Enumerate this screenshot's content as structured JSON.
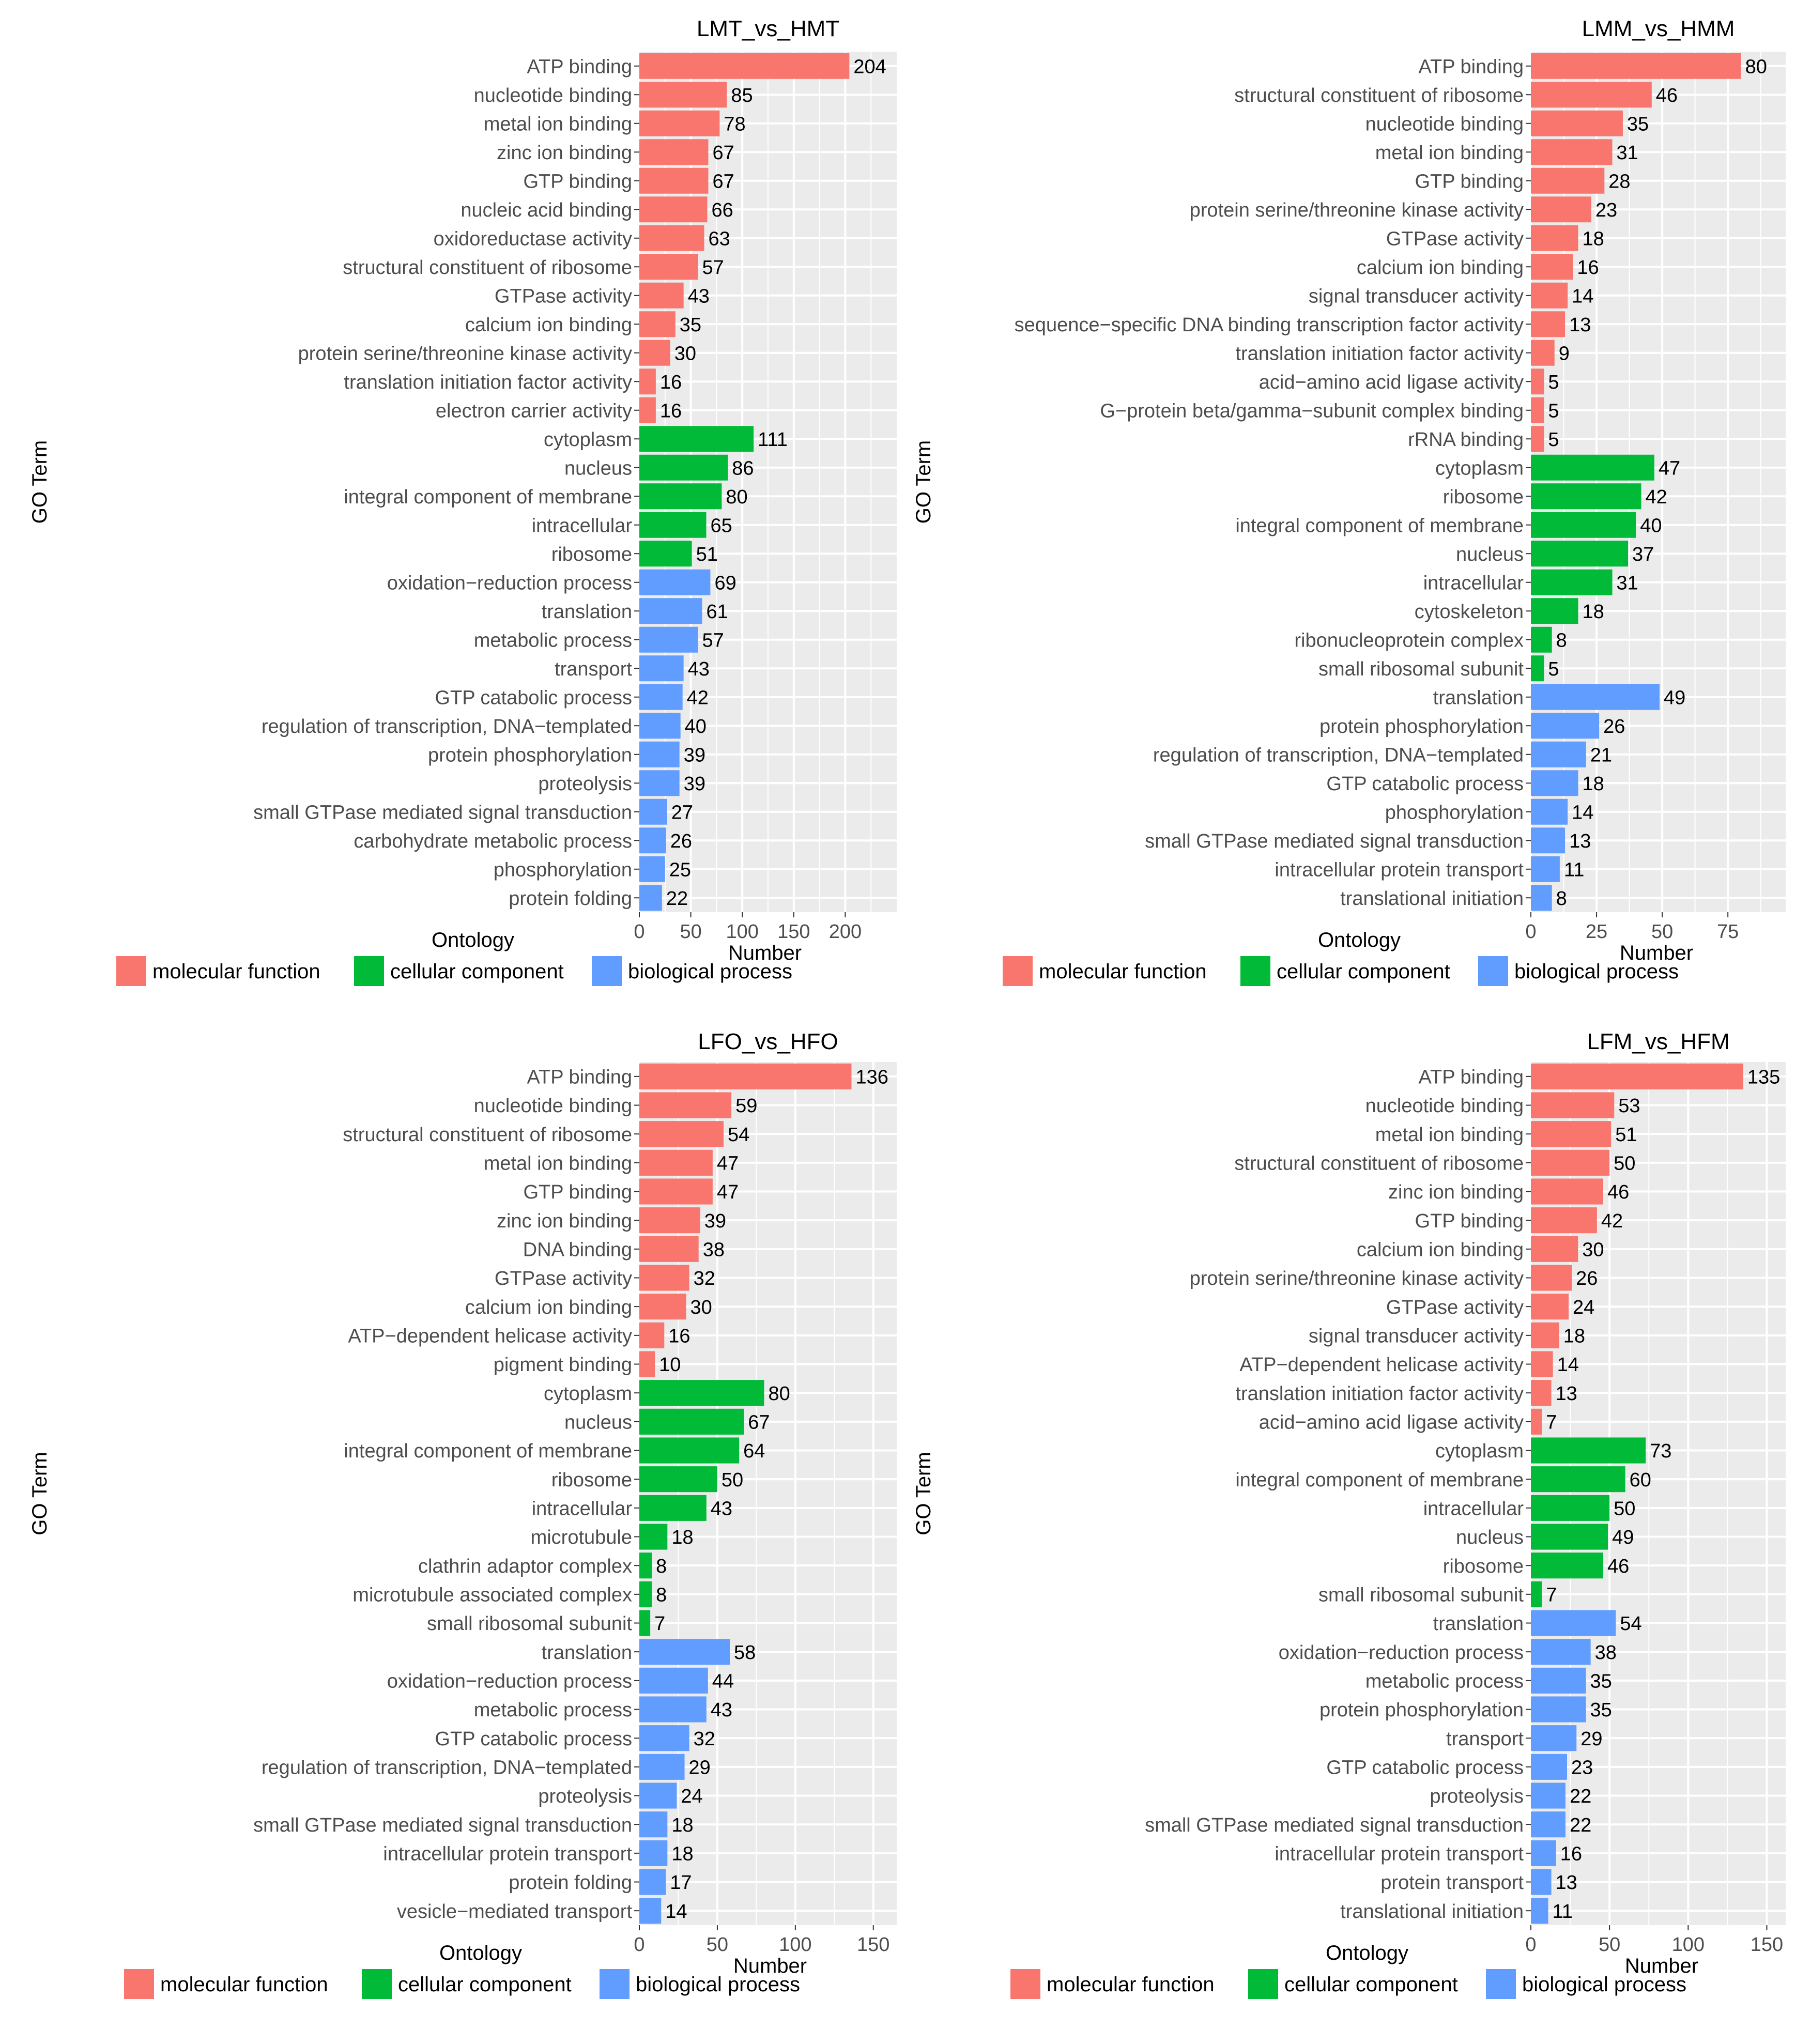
{
  "colors": {
    "molecular_function": "#F8766D",
    "cellular_component": "#00BA38",
    "biological_process": "#619CFF",
    "panel_bg": "#EBEBEB",
    "grid": "#FFFFFF",
    "text": "#4D4D4D"
  },
  "legend": {
    "title": "Ontology",
    "items": [
      {
        "key": "MF",
        "label": "molecular function"
      },
      {
        "key": "CC",
        "label": "cellular component"
      },
      {
        "key": "BP",
        "label": "biological process"
      }
    ]
  },
  "chart_data": [
    {
      "type": "bar",
      "orientation": "horizontal",
      "title": "LMT_vs_HMT",
      "xlabel": "Number",
      "ylabel": "GO Term",
      "xlim": [
        0,
        250
      ],
      "xticks": [
        0,
        50,
        100,
        150,
        200
      ],
      "grid": true,
      "legend_position": "bottom",
      "categories": [
        {
          "term": "ATP binding",
          "value": 204,
          "ontology": "MF"
        },
        {
          "term": "nucleotide binding",
          "value": 85,
          "ontology": "MF"
        },
        {
          "term": "metal ion binding",
          "value": 78,
          "ontology": "MF"
        },
        {
          "term": "zinc ion binding",
          "value": 67,
          "ontology": "MF"
        },
        {
          "term": "GTP binding",
          "value": 67,
          "ontology": "MF"
        },
        {
          "term": "nucleic acid binding",
          "value": 66,
          "ontology": "MF"
        },
        {
          "term": "oxidoreductase activity",
          "value": 63,
          "ontology": "MF"
        },
        {
          "term": "structural constituent of ribosome",
          "value": 57,
          "ontology": "MF"
        },
        {
          "term": "GTPase activity",
          "value": 43,
          "ontology": "MF"
        },
        {
          "term": "calcium ion binding",
          "value": 35,
          "ontology": "MF"
        },
        {
          "term": "protein serine/threonine kinase activity",
          "value": 30,
          "ontology": "MF"
        },
        {
          "term": "translation initiation factor activity",
          "value": 16,
          "ontology": "MF"
        },
        {
          "term": "electron carrier activity",
          "value": 16,
          "ontology": "MF"
        },
        {
          "term": "cytoplasm",
          "value": 111,
          "ontology": "CC"
        },
        {
          "term": "nucleus",
          "value": 86,
          "ontology": "CC"
        },
        {
          "term": "integral component of membrane",
          "value": 80,
          "ontology": "CC"
        },
        {
          "term": "intracellular",
          "value": 65,
          "ontology": "CC"
        },
        {
          "term": "ribosome",
          "value": 51,
          "ontology": "CC"
        },
        {
          "term": "oxidation−reduction process",
          "value": 69,
          "ontology": "BP"
        },
        {
          "term": "translation",
          "value": 61,
          "ontology": "BP"
        },
        {
          "term": "metabolic process",
          "value": 57,
          "ontology": "BP"
        },
        {
          "term": "transport",
          "value": 43,
          "ontology": "BP"
        },
        {
          "term": "GTP catabolic process",
          "value": 42,
          "ontology": "BP"
        },
        {
          "term": "regulation of transcription, DNA−templated",
          "value": 40,
          "ontology": "BP"
        },
        {
          "term": "protein phosphorylation",
          "value": 39,
          "ontology": "BP"
        },
        {
          "term": "proteolysis",
          "value": 39,
          "ontology": "BP"
        },
        {
          "term": "small GTPase mediated signal transduction",
          "value": 27,
          "ontology": "BP"
        },
        {
          "term": "carbohydrate metabolic process",
          "value": 26,
          "ontology": "BP"
        },
        {
          "term": "phosphorylation",
          "value": 25,
          "ontology": "BP"
        },
        {
          "term": "protein folding",
          "value": 22,
          "ontology": "BP"
        }
      ]
    },
    {
      "type": "bar",
      "orientation": "horizontal",
      "title": "LMM_vs_HMM",
      "xlabel": "Number",
      "ylabel": "GO Term",
      "xlim": [
        0,
        97
      ],
      "xticks": [
        0,
        25,
        50,
        75
      ],
      "grid": true,
      "legend_position": "bottom",
      "categories": [
        {
          "term": "ATP binding",
          "value": 80,
          "ontology": "MF"
        },
        {
          "term": "structural constituent of ribosome",
          "value": 46,
          "ontology": "MF"
        },
        {
          "term": "nucleotide binding",
          "value": 35,
          "ontology": "MF"
        },
        {
          "term": "metal ion binding",
          "value": 31,
          "ontology": "MF"
        },
        {
          "term": "GTP binding",
          "value": 28,
          "ontology": "MF"
        },
        {
          "term": "protein serine/threonine kinase activity",
          "value": 23,
          "ontology": "MF"
        },
        {
          "term": "GTPase activity",
          "value": 18,
          "ontology": "MF"
        },
        {
          "term": "calcium ion binding",
          "value": 16,
          "ontology": "MF"
        },
        {
          "term": "signal transducer activity",
          "value": 14,
          "ontology": "MF"
        },
        {
          "term": "sequence−specific DNA binding transcription factor activity",
          "value": 13,
          "ontology": "MF"
        },
        {
          "term": "translation initiation factor activity",
          "value": 9,
          "ontology": "MF"
        },
        {
          "term": "acid−amino acid ligase activity",
          "value": 5,
          "ontology": "MF"
        },
        {
          "term": "G−protein beta/gamma−subunit complex binding",
          "value": 5,
          "ontology": "MF"
        },
        {
          "term": "rRNA binding",
          "value": 5,
          "ontology": "MF"
        },
        {
          "term": "cytoplasm",
          "value": 47,
          "ontology": "CC"
        },
        {
          "term": "ribosome",
          "value": 42,
          "ontology": "CC"
        },
        {
          "term": "integral component of membrane",
          "value": 40,
          "ontology": "CC"
        },
        {
          "term": "nucleus",
          "value": 37,
          "ontology": "CC"
        },
        {
          "term": "intracellular",
          "value": 31,
          "ontology": "CC"
        },
        {
          "term": "cytoskeleton",
          "value": 18,
          "ontology": "CC"
        },
        {
          "term": "ribonucleoprotein complex",
          "value": 8,
          "ontology": "CC"
        },
        {
          "term": "small ribosomal subunit",
          "value": 5,
          "ontology": "CC"
        },
        {
          "term": "translation",
          "value": 49,
          "ontology": "BP"
        },
        {
          "term": "protein phosphorylation",
          "value": 26,
          "ontology": "BP"
        },
        {
          "term": "regulation of transcription, DNA−templated",
          "value": 21,
          "ontology": "BP"
        },
        {
          "term": "GTP catabolic process",
          "value": 18,
          "ontology": "BP"
        },
        {
          "term": "phosphorylation",
          "value": 14,
          "ontology": "BP"
        },
        {
          "term": "small GTPase mediated signal transduction",
          "value": 13,
          "ontology": "BP"
        },
        {
          "term": "intracellular protein transport",
          "value": 11,
          "ontology": "BP"
        },
        {
          "term": "translational initiation",
          "value": 8,
          "ontology": "BP"
        }
      ]
    },
    {
      "type": "bar",
      "orientation": "horizontal",
      "title": "LFO_vs_HFO",
      "xlabel": "Number",
      "ylabel": "GO Term",
      "xlim": [
        0,
        165
      ],
      "xticks": [
        0,
        50,
        100,
        150
      ],
      "grid": true,
      "legend_position": "bottom",
      "categories": [
        {
          "term": "ATP binding",
          "value": 136,
          "ontology": "MF"
        },
        {
          "term": "nucleotide binding",
          "value": 59,
          "ontology": "MF"
        },
        {
          "term": "structural constituent of ribosome",
          "value": 54,
          "ontology": "MF"
        },
        {
          "term": "metal ion binding",
          "value": 47,
          "ontology": "MF"
        },
        {
          "term": "GTP binding",
          "value": 47,
          "ontology": "MF"
        },
        {
          "term": "zinc ion binding",
          "value": 39,
          "ontology": "MF"
        },
        {
          "term": "DNA binding",
          "value": 38,
          "ontology": "MF"
        },
        {
          "term": "GTPase activity",
          "value": 32,
          "ontology": "MF"
        },
        {
          "term": "calcium ion binding",
          "value": 30,
          "ontology": "MF"
        },
        {
          "term": "ATP−dependent helicase activity",
          "value": 16,
          "ontology": "MF"
        },
        {
          "term": "pigment binding",
          "value": 10,
          "ontology": "MF"
        },
        {
          "term": "cytoplasm",
          "value": 80,
          "ontology": "CC"
        },
        {
          "term": "nucleus",
          "value": 67,
          "ontology": "CC"
        },
        {
          "term": "integral component of membrane",
          "value": 64,
          "ontology": "CC"
        },
        {
          "term": "ribosome",
          "value": 50,
          "ontology": "CC"
        },
        {
          "term": "intracellular",
          "value": 43,
          "ontology": "CC"
        },
        {
          "term": "microtubule",
          "value": 18,
          "ontology": "CC"
        },
        {
          "term": "clathrin adaptor complex",
          "value": 8,
          "ontology": "CC"
        },
        {
          "term": "microtubule associated complex",
          "value": 8,
          "ontology": "CC"
        },
        {
          "term": "small ribosomal subunit",
          "value": 7,
          "ontology": "CC"
        },
        {
          "term": "translation",
          "value": 58,
          "ontology": "BP"
        },
        {
          "term": "oxidation−reduction process",
          "value": 44,
          "ontology": "BP"
        },
        {
          "term": "metabolic process",
          "value": 43,
          "ontology": "BP"
        },
        {
          "term": "GTP catabolic process",
          "value": 32,
          "ontology": "BP"
        },
        {
          "term": "regulation of transcription, DNA−templated",
          "value": 29,
          "ontology": "BP"
        },
        {
          "term": "proteolysis",
          "value": 24,
          "ontology": "BP"
        },
        {
          "term": "small GTPase mediated signal transduction",
          "value": 18,
          "ontology": "BP"
        },
        {
          "term": "intracellular protein transport",
          "value": 18,
          "ontology": "BP"
        },
        {
          "term": "protein folding",
          "value": 17,
          "ontology": "BP"
        },
        {
          "term": "vesicle−mediated transport",
          "value": 14,
          "ontology": "BP"
        }
      ]
    },
    {
      "type": "bar",
      "orientation": "horizontal",
      "title": "LFM_vs_HFM",
      "xlabel": "Number",
      "ylabel": "GO Term",
      "xlim": [
        0,
        162
      ],
      "xticks": [
        0,
        50,
        100,
        150
      ],
      "grid": true,
      "legend_position": "bottom",
      "categories": [
        {
          "term": "ATP binding",
          "value": 135,
          "ontology": "MF"
        },
        {
          "term": "nucleotide binding",
          "value": 53,
          "ontology": "MF"
        },
        {
          "term": "metal ion binding",
          "value": 51,
          "ontology": "MF"
        },
        {
          "term": "structural constituent of ribosome",
          "value": 50,
          "ontology": "MF"
        },
        {
          "term": "zinc ion binding",
          "value": 46,
          "ontology": "MF"
        },
        {
          "term": "GTP binding",
          "value": 42,
          "ontology": "MF"
        },
        {
          "term": "calcium ion binding",
          "value": 30,
          "ontology": "MF"
        },
        {
          "term": "protein serine/threonine kinase activity",
          "value": 26,
          "ontology": "MF"
        },
        {
          "term": "GTPase activity",
          "value": 24,
          "ontology": "MF"
        },
        {
          "term": "signal transducer activity",
          "value": 18,
          "ontology": "MF"
        },
        {
          "term": "ATP−dependent helicase activity",
          "value": 14,
          "ontology": "MF"
        },
        {
          "term": "translation initiation factor activity",
          "value": 13,
          "ontology": "MF"
        },
        {
          "term": "acid−amino acid ligase activity",
          "value": 7,
          "ontology": "MF"
        },
        {
          "term": "cytoplasm",
          "value": 73,
          "ontology": "CC"
        },
        {
          "term": "integral component of membrane",
          "value": 60,
          "ontology": "CC"
        },
        {
          "term": "intracellular",
          "value": 50,
          "ontology": "CC"
        },
        {
          "term": "nucleus",
          "value": 49,
          "ontology": "CC"
        },
        {
          "term": "ribosome",
          "value": 46,
          "ontology": "CC"
        },
        {
          "term": "small ribosomal subunit",
          "value": 7,
          "ontology": "CC"
        },
        {
          "term": "translation",
          "value": 54,
          "ontology": "BP"
        },
        {
          "term": "oxidation−reduction process",
          "value": 38,
          "ontology": "BP"
        },
        {
          "term": "metabolic process",
          "value": 35,
          "ontology": "BP"
        },
        {
          "term": "protein phosphorylation",
          "value": 35,
          "ontology": "BP"
        },
        {
          "term": "transport",
          "value": 29,
          "ontology": "BP"
        },
        {
          "term": "GTP catabolic process",
          "value": 23,
          "ontology": "BP"
        },
        {
          "term": "proteolysis",
          "value": 22,
          "ontology": "BP"
        },
        {
          "term": "small GTPase mediated signal transduction",
          "value": 22,
          "ontology": "BP"
        },
        {
          "term": "intracellular protein transport",
          "value": 16,
          "ontology": "BP"
        },
        {
          "term": "protein transport",
          "value": 13,
          "ontology": "BP"
        },
        {
          "term": "translational initiation",
          "value": 11,
          "ontology": "BP"
        }
      ]
    }
  ]
}
